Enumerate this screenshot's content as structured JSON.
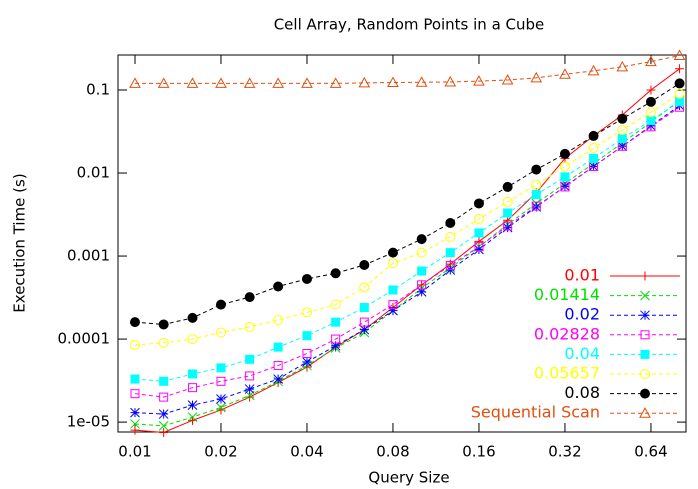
{
  "chart_data": {
    "type": "line",
    "title": "Cell Array, Random Points in a Cube",
    "xlabel": "Query Size",
    "ylabel": "Execution Time (s)",
    "log_x": true,
    "log_y": true,
    "legend": "lower right",
    "x": [
      0.01,
      0.0126,
      0.0159,
      0.02,
      0.0252,
      0.0317,
      0.04,
      0.0504,
      0.0635,
      0.08,
      0.1008,
      0.127,
      0.16,
      0.2016,
      0.254,
      0.32,
      0.403,
      0.508,
      0.64,
      0.806
    ],
    "xlim": [
      0.00872,
      0.849
    ],
    "xticks": [
      0.01,
      0.02,
      0.04,
      0.08,
      0.16,
      0.32,
      0.64
    ],
    "ylim": [
      7.6e-06,
      0.264
    ],
    "yticks": [
      {
        "value": 1e-05,
        "label": "1e-05"
      },
      0.0001,
      0.001,
      0.01,
      0.1
    ],
    "series": [
      {
        "name": "0.01",
        "color": "#ff0000",
        "marker": "plus",
        "dashed": false,
        "values": [
          8e-06,
          7.5e-06,
          1.05e-05,
          1.4e-05,
          2e-05,
          3e-05,
          4.6e-05,
          8e-05,
          0.00013,
          0.00024,
          0.00045,
          0.0008,
          0.0015,
          0.0027,
          0.0058,
          0.015,
          0.028,
          0.05,
          0.1,
          0.18
        ]
      },
      {
        "name": "0.01414",
        "color": "#00e000",
        "marker": "cross",
        "dashed": true,
        "values": [
          9.5e-06,
          9e-06,
          1.15e-05,
          1.5e-05,
          2.1e-05,
          3.1e-05,
          4.8e-05,
          7.8e-05,
          0.00012,
          0.00022,
          0.00041,
          0.00072,
          0.0013,
          0.0024,
          0.0043,
          0.0075,
          0.013,
          0.023,
          0.041,
          0.075
        ]
      },
      {
        "name": "0.02",
        "color": "#0000ff",
        "marker": "star",
        "dashed": true,
        "values": [
          1.3e-05,
          1.25e-05,
          1.6e-05,
          1.9e-05,
          2.5e-05,
          3.3e-05,
          5.3e-05,
          8.3e-05,
          0.00013,
          0.00022,
          0.00037,
          0.00068,
          0.0012,
          0.0022,
          0.0039,
          0.0069,
          0.012,
          0.021,
          0.037,
          0.065
        ]
      },
      {
        "name": "0.02828",
        "color": "#ff00ff",
        "marker": "square",
        "dashed": true,
        "values": [
          2.2e-05,
          2e-05,
          2.6e-05,
          3.1e-05,
          3.6e-05,
          4.8e-05,
          6.7e-05,
          0.0001,
          0.00016,
          0.00026,
          0.00045,
          0.00077,
          0.0013,
          0.0023,
          0.004,
          0.0068,
          0.012,
          0.021,
          0.036,
          0.062
        ]
      },
      {
        "name": "0.04",
        "color": "#00ffff",
        "marker": "filled-square",
        "dashed": true,
        "values": [
          3.3e-05,
          3.1e-05,
          3.8e-05,
          4.5e-05,
          5.7e-05,
          8e-05,
          0.00011,
          0.00016,
          0.00024,
          0.00039,
          0.00066,
          0.0011,
          0.0019,
          0.0033,
          0.0055,
          0.009,
          0.015,
          0.026,
          0.043,
          0.072
        ]
      },
      {
        "name": "0.05657",
        "color": "#ffff00",
        "marker": "circle",
        "dashed": true,
        "values": [
          8.5e-05,
          9e-05,
          0.0001,
          0.00012,
          0.00014,
          0.00017,
          0.00021,
          0.00026,
          0.00042,
          0.00082,
          0.0011,
          0.0017,
          0.0028,
          0.0045,
          0.0072,
          0.012,
          0.02,
          0.033,
          0.054,
          0.09
        ]
      },
      {
        "name": "0.08",
        "color": "#000000",
        "marker": "filled-circle",
        "dashed": true,
        "values": [
          0.00016,
          0.00015,
          0.00018,
          0.00026,
          0.00032,
          0.00043,
          0.00053,
          0.00062,
          0.00078,
          0.0011,
          0.0016,
          0.0025,
          0.0043,
          0.0068,
          0.011,
          0.017,
          0.028,
          0.045,
          0.072,
          0.12
        ]
      },
      {
        "name": "Sequential Scan",
        "color": "#e05010",
        "marker": "triangle",
        "dashed": true,
        "values": [
          0.12,
          0.12,
          0.12,
          0.12,
          0.12,
          0.12,
          0.12,
          0.12,
          0.122,
          0.123,
          0.124,
          0.125,
          0.128,
          0.132,
          0.14,
          0.155,
          0.17,
          0.19,
          0.22,
          0.26
        ]
      }
    ]
  }
}
